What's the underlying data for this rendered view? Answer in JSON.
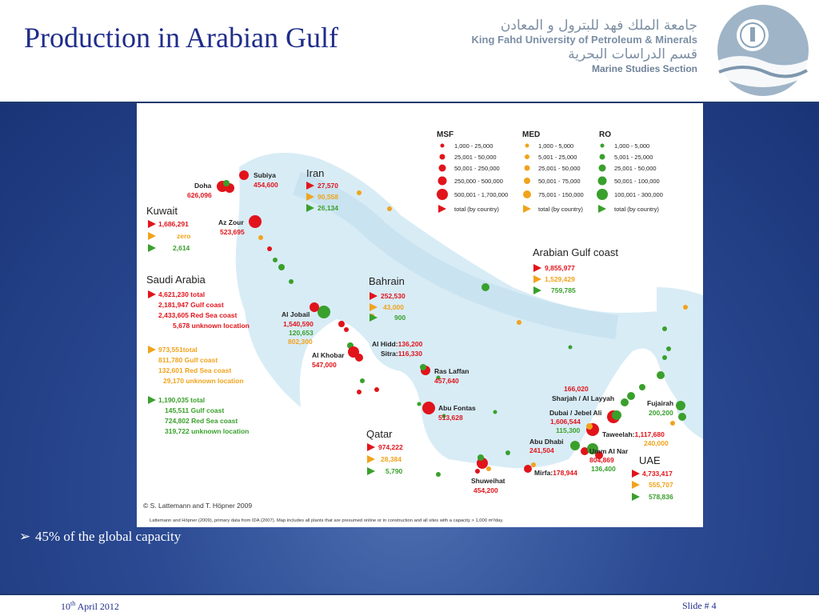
{
  "title": "Production in Arabian Gulf",
  "logo": {
    "arabic_line1": "جامعة الملك فهد للبترول و المعادن",
    "english_line1": "King Fahd University of Petroleum & Minerals",
    "arabic_line2": "قسم الدراسات البحرية",
    "english_line2": "Marine Studies Section"
  },
  "bullet": "45% of the global capacity",
  "footer": {
    "date_day": "10",
    "date_sup": "th",
    "date_rest": " April 2012",
    "slide": "Slide # 4"
  },
  "map": {
    "legend": {
      "msf_title": "MSF",
      "med_title": "MED",
      "ro_title": "RO",
      "msf": [
        "1,000 - 25,000",
        "25,001 - 50,000",
        "50,001 - 250,000",
        "250,000 - 500,000",
        "500,001 - 1,700,000",
        "total (by country)"
      ],
      "med": [
        "1,000 - 5,000",
        "5,001 - 25,000",
        "25,001 - 50,000",
        "50,001 - 75,000",
        "75,001 - 150,000",
        "total (by country)"
      ],
      "ro": [
        "1,000 - 5,000",
        "5,001 - 25,000",
        "25,001 - 50,000",
        "50,001 - 100,000",
        "100,001 - 300,000",
        "total (by country)"
      ]
    },
    "kuwait": {
      "name": "Kuwait",
      "msf": "1,686,291",
      "med": "zero",
      "ro": "2,614"
    },
    "iran": {
      "name": "Iran",
      "msf": "27,570",
      "med": "90,558",
      "ro": "26,134"
    },
    "saudi": {
      "name": "Saudi Arabia",
      "msf": [
        "4,621,230 total",
        "2,181,947 Gulf coast",
        "2,433,605 Red Sea coast",
        "5,678 unknown location"
      ],
      "med": [
        "973,551total",
        "811,780 Gulf coast",
        "132,601 Red Sea coast",
        "29,170 unknown location"
      ],
      "ro": [
        "1,190,035 total",
        "145,511 Gulf coast",
        "724,802 Red Sea coast",
        "319,722 unknown location"
      ]
    },
    "bahrain": {
      "name": "Bahrain",
      "msf": "252,530",
      "med": "43,000",
      "ro": "900"
    },
    "gulf_coast": {
      "name": "Arabian Gulf coast",
      "msf": "9,855,977",
      "med": "1,529,429",
      "ro": "759,785"
    },
    "qatar": {
      "name": "Qatar",
      "msf": "974,222",
      "med": "28,384",
      "ro": "5,790"
    },
    "uae": {
      "name": "UAE",
      "msf": "4,733,417",
      "med": "555,707",
      "ro": "578,836"
    },
    "sites": {
      "doha_name": "Doha",
      "doha_val": "626,096",
      "subiya_name": "Subiya",
      "subiya_val": "454,600",
      "azzour_name": "Az Zour",
      "azzour_val": "523,695",
      "jobail_name": "Al Jobail",
      "jobail_msf": "1,540,590",
      "jobail_ro": "120,653",
      "jobail_med": "802,300",
      "khobar_name": "Al Khobar",
      "khobar_val": "547,000",
      "hidd": "Al Hidd:",
      "hidd_val": "136,200",
      "sitra": "Sitra:",
      "sitra_val": "116,330",
      "laffan_name": "Ras Laffan",
      "laffan_val": "457,640",
      "fontas_name": "Abu Fontas",
      "fontas_val": "513,628",
      "shuweihat_name": "Shuweihat",
      "shuweihat_val": "454,200",
      "sharjah_val": "166,020",
      "sharjah_name": "Sharjah / Al Layyah",
      "dubai_name": "Dubai / Jebel Ali",
      "dubai_msf": "1,606,544",
      "dubai_ro": "115,300",
      "taweelah": "Taweelah:",
      "taweelah_msf": "1,117,680",
      "taweelah_med": "240,000",
      "fujairah_name": "Fujairah",
      "fujairah_val": "200,200",
      "abudhabi_name": "Abu Dhabi",
      "abudhabi_val": "241,504",
      "umm_name": "Umm Al Nar",
      "umm_msf": "804,869",
      "umm_ro": "136,400",
      "mirfa": "Mirfa:",
      "mirfa_val": "178,944"
    },
    "copyright": "© S. Lattemann and T. Höpner 2009",
    "source": "Lattemann and Höpner (2009), primary data from IDA (2007). Map includes all plants that are presumed online or in construction and all sites with a capacity > 1,000 m³/day."
  },
  "colors": {
    "msf": "#e1141b",
    "med": "#f0a31c",
    "ro": "#39a02c",
    "title": "#1f2d8a"
  }
}
